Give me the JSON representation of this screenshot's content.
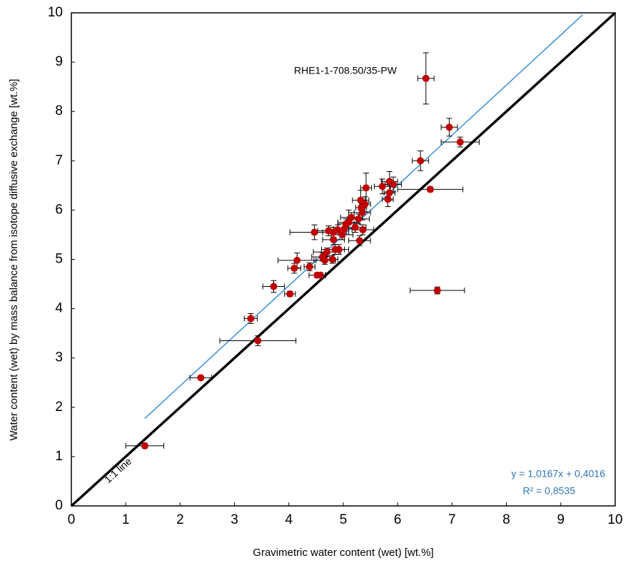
{
  "chart_data": {
    "type": "scatter",
    "x_label": "Gravimetric water content (wet) [wt.%]",
    "y_label": "Water content (wet) by mass balance from isotope diffusive exchange [wt.%]",
    "annotation": "RHE1-1-708.50/35-PW",
    "color": "#c00000",
    "x": [
      1.35,
      2.38,
      3.3,
      3.43,
      3.72,
      4.02,
      4.1,
      4.15,
      4.38,
      4.47,
      4.52,
      4.58,
      4.62,
      4.66,
      4.7,
      4.73,
      4.8,
      4.82,
      4.82,
      4.85,
      4.9,
      4.92,
      4.98,
      5.02,
      5.05,
      5.1,
      5.15,
      5.22,
      5.28,
      5.3,
      5.32,
      5.33,
      5.35,
      5.36,
      5.4,
      5.42,
      5.72,
      5.82,
      5.85,
      5.85,
      5.92,
      6.42,
      6.52,
      6.6,
      6.73,
      6.95,
      7.15
    ],
    "values": [
      1.22,
      2.6,
      3.8,
      3.35,
      4.45,
      4.3,
      4.82,
      4.98,
      4.85,
      5.55,
      4.68,
      4.68,
      5.05,
      4.98,
      5.15,
      5.58,
      5.0,
      5.4,
      5.55,
      5.2,
      5.6,
      5.2,
      5.5,
      5.62,
      5.72,
      5.75,
      5.85,
      5.65,
      5.82,
      5.38,
      6.2,
      6.05,
      5.95,
      5.6,
      6.12,
      6.45,
      6.48,
      6.22,
      6.35,
      6.58,
      6.52,
      7.0,
      8.67,
      6.42,
      4.37,
      7.68,
      7.38
    ],
    "x_err": [
      0.35,
      0.2,
      0.12,
      0.7,
      0.2,
      0.1,
      0.12,
      0.35,
      0.1,
      0.45,
      0.15,
      0.1,
      0.2,
      0.2,
      0.25,
      0.2,
      0.1,
      0.2,
      0.2,
      0.25,
      0.15,
      0.1,
      0.2,
      0.2,
      0.15,
      0.2,
      0.2,
      0.2,
      0.2,
      0.2,
      0.15,
      0.1,
      0.15,
      0.2,
      0.1,
      0.1,
      0.15,
      0.1,
      0.1,
      0.15,
      0.15,
      0.15,
      0.15,
      0.6,
      0.5,
      0.15,
      0.35
    ],
    "y_err": [
      0.05,
      0.03,
      0.1,
      0.1,
      0.12,
      0.05,
      0.1,
      0.15,
      0.08,
      0.15,
      0.05,
      0.05,
      0.08,
      0.08,
      0.08,
      0.1,
      0.08,
      0.1,
      0.1,
      0.1,
      0.1,
      0.1,
      0.1,
      0.1,
      0.1,
      0.25,
      0.1,
      0.1,
      0.1,
      0.1,
      0.2,
      0.15,
      0.15,
      0.1,
      0.15,
      0.3,
      0.15,
      0.15,
      0.15,
      0.2,
      0.15,
      0.2,
      0.52,
      0.05,
      0.07,
      0.18,
      0.1
    ],
    "trendline": {
      "label": "y = 1,0167x + 0,4016",
      "r2_label": "R² = 0,8535",
      "color": "#3a8fd6",
      "x": [
        1.35,
        9.4
      ],
      "y": [
        1.774,
        9.958
      ]
    },
    "identity_line": {
      "label": "1:1 line",
      "color": "#000000",
      "x": [
        0,
        10
      ],
      "y": [
        0,
        10
      ]
    },
    "xlim": [
      0,
      10
    ],
    "ylim": [
      0,
      10
    ],
    "xticks": [
      0,
      1,
      2,
      3,
      4,
      5,
      6,
      7,
      8,
      9,
      10
    ],
    "yticks": [
      0,
      1,
      2,
      3,
      4,
      5,
      6,
      7,
      8,
      9,
      10
    ]
  }
}
